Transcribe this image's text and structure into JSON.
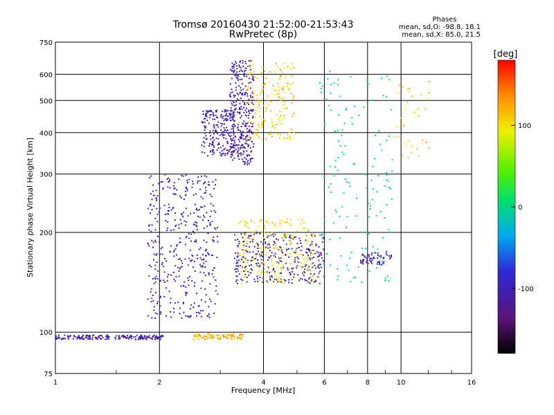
{
  "chart_data": {
    "type": "scatter",
    "title": "Tromsø 20160430 21:52:00-21:53:43",
    "subtitle": "RwPretec (8p)",
    "xlabel": "Frequency [MHz]",
    "ylabel": "Stationary phase Virtual Height [km]",
    "x_scale": "log",
    "y_scale": "log",
    "xlim": [
      1,
      16
    ],
    "ylim": [
      75,
      750
    ],
    "x_ticks": [
      1,
      2,
      4,
      6,
      8,
      10,
      16
    ],
    "y_ticks": [
      75,
      100,
      200,
      300,
      400,
      500,
      600,
      750
    ],
    "grid": true,
    "phase_legend": {
      "heading": "Phases",
      "line1": "mean, sd,O:  -98.8, 18.1",
      "line2": "mean, sd,X:   85.0, 21.5"
    },
    "colorbar": {
      "label": "[deg]",
      "range": [
        -180,
        180
      ],
      "ticks": [
        -100,
        0,
        100
      ],
      "colormap": "rainbow (black → purple → blue → cyan → green → yellow → orange → red)"
    },
    "clusters": [
      {
        "name": "E-layer trace",
        "x": [
          1.0,
          2.05
        ],
        "y": [
          95,
          98
        ],
        "phase": -105,
        "points": 200
      },
      {
        "name": "Es yellow trace",
        "x": [
          2.5,
          3.55
        ],
        "y": [
          95,
          99
        ],
        "phase": 120,
        "points": 90
      },
      {
        "name": "F1 O-mode rise",
        "x": [
          1.85,
          2.95
        ],
        "y": [
          110,
          300
        ],
        "phase": -105,
        "points": 420
      },
      {
        "name": "F region O cluster",
        "x": [
          2.65,
          3.3
        ],
        "y": [
          340,
          470
        ],
        "phase": -105,
        "points": 220
      },
      {
        "name": "F2 O-mode cusp",
        "x": [
          3.2,
          3.75
        ],
        "y": [
          320,
          660
        ],
        "phase": -105,
        "points": 330
      },
      {
        "name": "F2 X-mode",
        "x": [
          3.6,
          4.9
        ],
        "y": [
          380,
          650
        ],
        "phase": 110,
        "points": 170
      },
      {
        "name": "Multi-hop O traces",
        "x": [
          3.3,
          6.0
        ],
        "y": [
          140,
          200
        ],
        "phase": -100,
        "points": 340
      },
      {
        "name": "Multi-hop X traces",
        "x": [
          3.4,
          5.6
        ],
        "y": [
          140,
          220
        ],
        "phase": 100,
        "points": 220
      },
      {
        "name": "Sparse high frequency",
        "x": [
          5.8,
          9.5
        ],
        "y": [
          140,
          620
        ],
        "phase": 0,
        "points": 150
      },
      {
        "name": "Cluster near 9 MHz",
        "x": [
          7.6,
          9.4
        ],
        "y": [
          160,
          175
        ],
        "phase": -100,
        "points": 60
      },
      {
        "name": "Scattered X at 10-12 MHz",
        "x": [
          9.6,
          12.2
        ],
        "y": [
          330,
          580
        ],
        "phase": 110,
        "points": 35
      }
    ]
  }
}
